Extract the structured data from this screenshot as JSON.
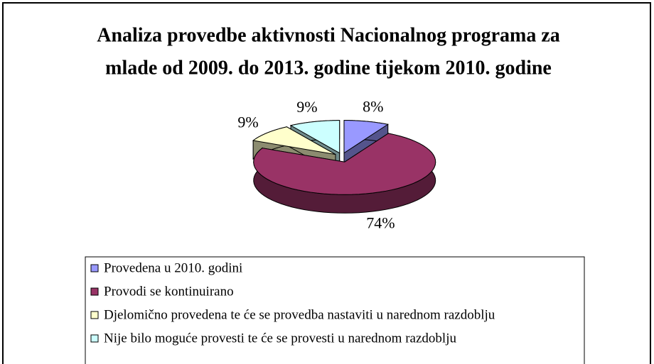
{
  "chart_data": {
    "type": "pie3d",
    "title": [
      "Analiza provedbe aktivnosti Nacionalnog programa za",
      "mlade od 2009. do 2013. godine tijekom 2010. godine"
    ],
    "categories": [
      "Provedena u 2010. godini",
      "Provodi se kontinuirano",
      "Djelomično provedena te će se provedba nastaviti u narednom razdoblju",
      "Nije bilo moguće provesti te će se provesti u narednom razdoblju"
    ],
    "values": [
      8,
      74,
      9,
      9
    ],
    "value_labels": [
      "8%",
      "74%",
      "9%",
      "9%"
    ],
    "colors": [
      "#9999ff",
      "#993366",
      "#ffffcc",
      "#ccffff"
    ],
    "legend": "bottom"
  }
}
